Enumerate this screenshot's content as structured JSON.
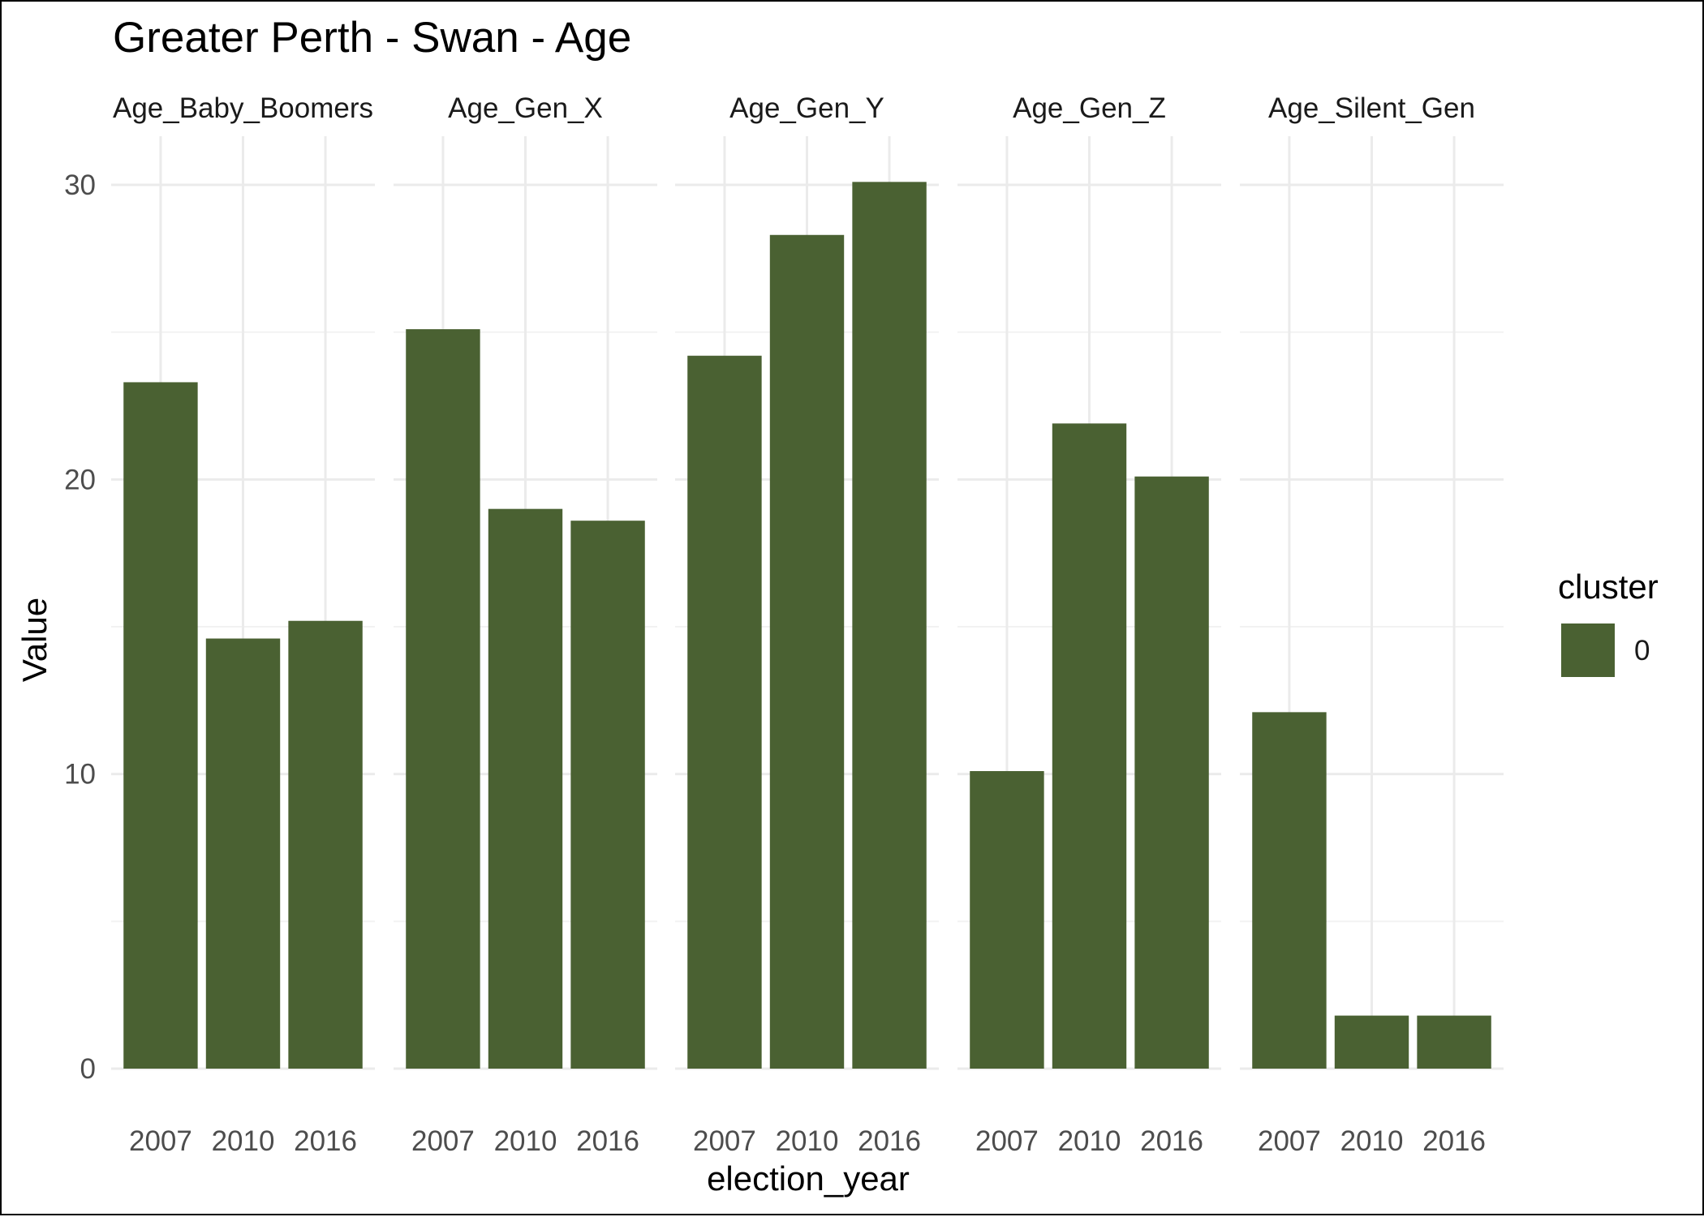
{
  "chart_data": {
    "type": "bar",
    "title": "Greater Perth - Swan - Age",
    "xlabel": "election_year",
    "ylabel": "Value",
    "ylim": [
      0,
      30
    ],
    "y_ticks": [
      0,
      10,
      20,
      30
    ],
    "categories": [
      "2007",
      "2010",
      "2016"
    ],
    "facets": [
      {
        "name": "Age_Baby_Boomers",
        "values": [
          23.3,
          14.6,
          15.2
        ]
      },
      {
        "name": "Age_Gen_X",
        "values": [
          25.1,
          19.0,
          18.6
        ]
      },
      {
        "name": "Age_Gen_Y",
        "values": [
          24.2,
          28.3,
          30.1
        ]
      },
      {
        "name": "Age_Gen_Z",
        "values": [
          10.1,
          21.9,
          20.1
        ]
      },
      {
        "name": "Age_Silent_Gen",
        "values": [
          12.1,
          1.8,
          1.8
        ]
      }
    ],
    "legend": {
      "title": "cluster",
      "entries": [
        {
          "label": "0",
          "color": "#4a6132"
        }
      ],
      "position": "right"
    },
    "bar_color": "#4a6132",
    "grid": true
  }
}
